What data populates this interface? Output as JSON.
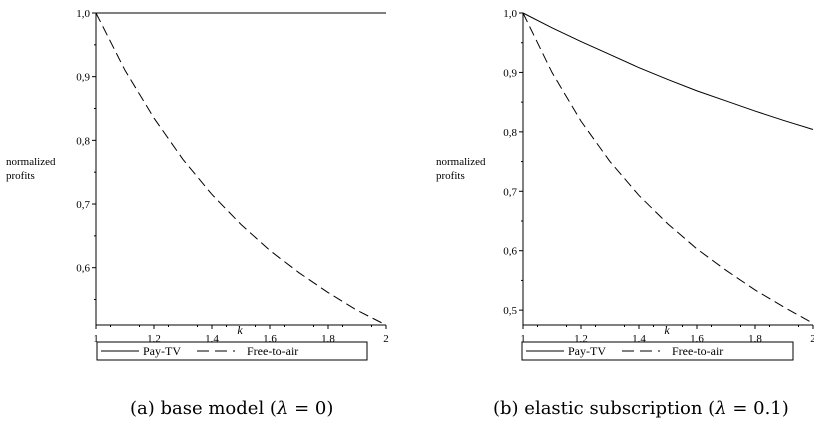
{
  "chart_data": [
    {
      "type": "line",
      "xlabel": "k",
      "ylabel": [
        "normalized",
        "profits"
      ],
      "xlim": [
        1,
        2
      ],
      "ylim": [
        0.51,
        1.0
      ],
      "x_ticks": [
        "1",
        "1,2",
        "1,4",
        "1,6",
        "1,8",
        "2"
      ],
      "x_tick_values": [
        1,
        1.2,
        1.4,
        1.6,
        1.8,
        2
      ],
      "y_ticks": [
        "0,6",
        "0,7",
        "0,8",
        "0,9",
        "1,0"
      ],
      "y_tick_values": [
        0.6,
        0.7,
        0.8,
        0.9,
        1.0
      ],
      "legend_position": "bottom",
      "x": [
        1,
        1.1,
        1.2,
        1.3,
        1.4,
        1.5,
        1.6,
        1.7,
        1.8,
        1.9,
        2
      ],
      "series": [
        {
          "name": "Pay-TV",
          "style": "solid",
          "values": [
            1.0,
            1.0,
            1.0,
            1.0,
            1.0,
            1.0,
            1.0,
            1.0,
            1.0,
            1.0,
            1.0
          ]
        },
        {
          "name": "Free-to-air",
          "style": "dashed",
          "values": [
            1.0,
            0.91,
            0.835,
            0.77,
            0.715,
            0.668,
            0.627,
            0.592,
            0.561,
            0.533,
            0.51
          ]
        }
      ],
      "caption": {
        "prefix": "(a) base model (",
        "lambda": "λ",
        "suffix": " = 0)"
      }
    },
    {
      "type": "line",
      "xlabel": "k",
      "ylabel": [
        "normalized",
        "profits"
      ],
      "xlim": [
        1,
        2
      ],
      "ylim": [
        0.475,
        1.0
      ],
      "x_ticks": [
        "1",
        "1,2",
        "1,4",
        "1,6",
        "1,8",
        "2"
      ],
      "x_tick_values": [
        1,
        1.2,
        1.4,
        1.6,
        1.8,
        2
      ],
      "y_ticks": [
        "0,5",
        "0,6",
        "0,7",
        "0,8",
        "0,9",
        "1,0"
      ],
      "y_tick_values": [
        0.5,
        0.6,
        0.7,
        0.8,
        0.9,
        1.0
      ],
      "legend_position": "bottom",
      "x": [
        1,
        1.1,
        1.2,
        1.3,
        1.4,
        1.5,
        1.6,
        1.7,
        1.8,
        1.9,
        2
      ],
      "series": [
        {
          "name": "Pay-TV",
          "style": "solid",
          "values": [
            1.0,
            0.975,
            0.952,
            0.93,
            0.908,
            0.888,
            0.869,
            0.852,
            0.835,
            0.819,
            0.804
          ]
        },
        {
          "name": "Free-to-air",
          "style": "dashed",
          "values": [
            1.0,
            0.9,
            0.818,
            0.75,
            0.693,
            0.645,
            0.603,
            0.567,
            0.534,
            0.505,
            0.478
          ]
        }
      ],
      "caption": {
        "prefix": "(b) elastic subscription (",
        "lambda": "λ",
        "suffix": " = 0.1)"
      }
    }
  ]
}
